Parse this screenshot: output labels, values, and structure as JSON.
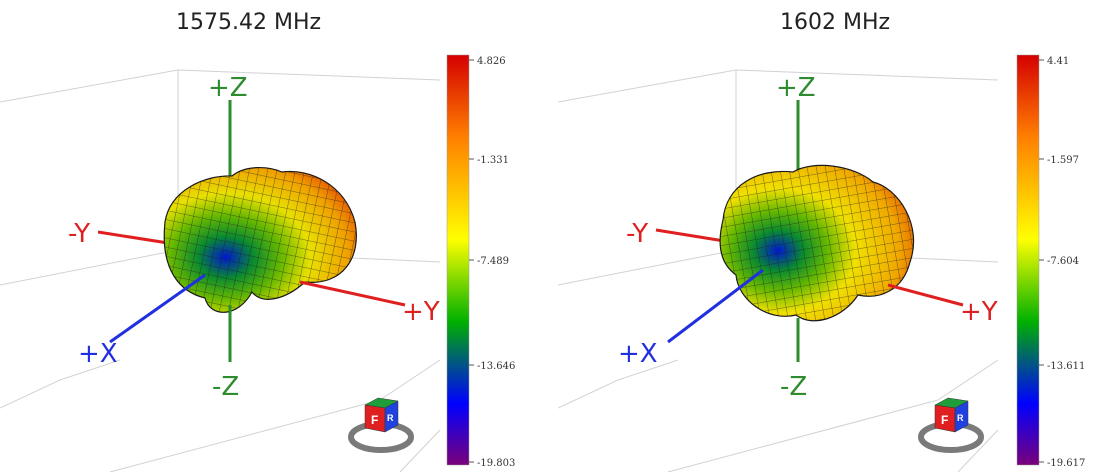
{
  "panels": [
    {
      "title": "1575.42 MHz",
      "axes": {
        "plus_z": "+Z",
        "minus_z": "-Z",
        "plus_y": "+Y",
        "minus_y": "-Y",
        "plus_x": "+X"
      },
      "colorbar": {
        "ticks": [
          "4.826",
          "-1.331",
          "-7.489",
          "-13.646",
          "-19.803"
        ]
      },
      "cube": {
        "front": "F",
        "side": "R"
      }
    },
    {
      "title": "1602 MHz",
      "axes": {
        "plus_z": "+Z",
        "minus_z": "-Z",
        "plus_y": "+Y",
        "minus_y": "-Y",
        "plus_x": "+X"
      },
      "colorbar": {
        "ticks": [
          "4.41",
          "-1.597",
          "-7.604",
          "-13.611",
          "-19.617"
        ]
      },
      "cube": {
        "front": "F",
        "side": "R"
      }
    }
  ],
  "colors": {
    "axis_z": "#2e8b2e",
    "axis_y": "#e02020",
    "axis_x": "#2030e0",
    "colormap": [
      "#d40000",
      "#ff7f00",
      "#ffff00",
      "#00b000",
      "#0000ff",
      "#7a007a"
    ]
  }
}
